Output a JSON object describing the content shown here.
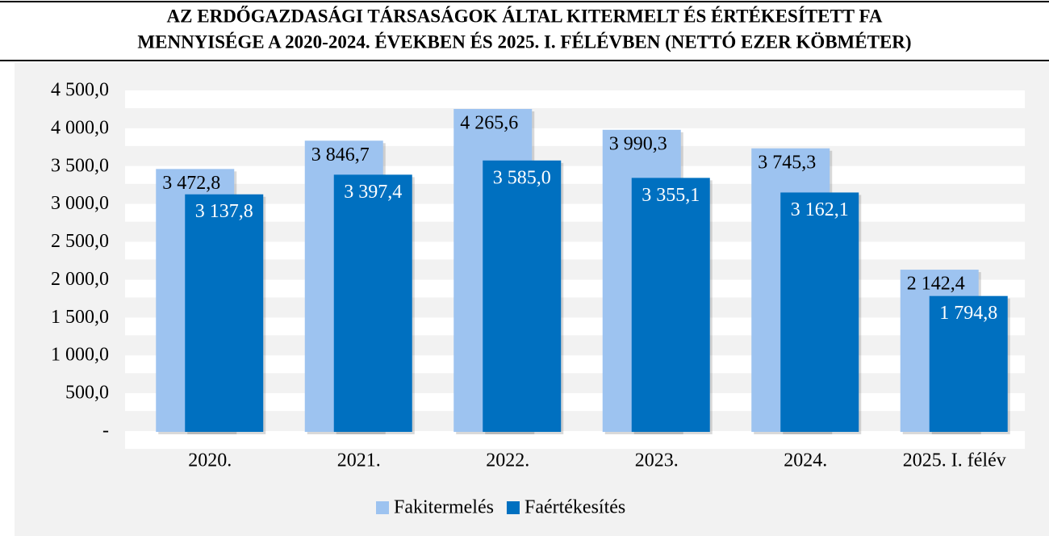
{
  "chart_data": {
    "type": "bar",
    "title": "AZ ERDŐGAZDASÁGI TÁRSASÁGOK ÁLTAL KITERMELT ÉS ÉRTÉKESÍTETT FA",
    "subtitle": "MENNYISÉGE A 2020-2024. ÉVEKBEN ÉS 2025. I. FÉLÉVBEN (NETTÓ EZER KÖBMÉTER)",
    "categories": [
      "2020.",
      "2021.",
      "2022.",
      "2023.",
      "2024.",
      "2025. I. félév"
    ],
    "series": [
      {
        "name": "Fakitermelés",
        "color": "#9dc3f0",
        "values": [
          3472.8,
          3846.7,
          4265.6,
          3990.3,
          3745.3,
          2142.4
        ],
        "value_labels": [
          "3 472,8",
          "3 846,7",
          "4 265,6",
          "3 990,3",
          "3 745,3",
          "2 142,4"
        ]
      },
      {
        "name": "Faértékesítés",
        "color": "#0070c0",
        "values": [
          3137.8,
          3397.4,
          3585.0,
          3355.1,
          3162.1,
          1794.8
        ],
        "value_labels": [
          "3 137,8",
          "3 397,4",
          "3 585,0",
          "3 355,1",
          "3 162,1",
          "1 794,8"
        ]
      }
    ],
    "ylim": [
      0,
      4500
    ],
    "yticks": [
      {
        "value": 0,
        "label": "-"
      },
      {
        "value": 500,
        "label": "500,0"
      },
      {
        "value": 1000,
        "label": "1 000,0"
      },
      {
        "value": 1500,
        "label": "1 500,0"
      },
      {
        "value": 2000,
        "label": "2 000,0"
      },
      {
        "value": 2500,
        "label": "2 500,0"
      },
      {
        "value": 3000,
        "label": "3 000,0"
      },
      {
        "value": 3500,
        "label": "3 500,0"
      },
      {
        "value": 4000,
        "label": "4 000,0"
      },
      {
        "value": 4500,
        "label": "4 500,0"
      }
    ],
    "grid": true,
    "legend": "bottom"
  }
}
